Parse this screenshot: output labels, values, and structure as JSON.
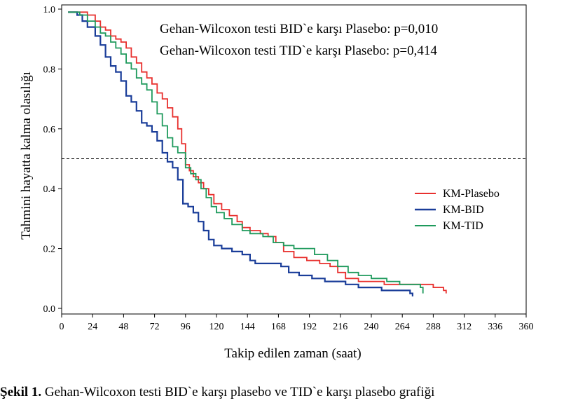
{
  "chart_data": {
    "type": "line",
    "title": "",
    "xlabel": "Takip edilen zaman (saat)",
    "ylabel": "Tahmini hayatta kalma olasılığı",
    "xlim": [
      0,
      360
    ],
    "ylim": [
      0,
      1.0
    ],
    "x_ticks": [
      0,
      24,
      48,
      72,
      96,
      120,
      144,
      168,
      192,
      216,
      240,
      264,
      288,
      312,
      336,
      360
    ],
    "x_tick_labels": [
      "0",
      "24",
      "48",
      "72",
      "96",
      "120",
      "144",
      "168",
      "192",
      "216",
      "240",
      "264",
      "288",
      "312",
      "336",
      "360"
    ],
    "y_ticks": [
      0.0,
      0.2,
      0.4,
      0.6,
      0.8,
      1.0
    ],
    "y_tick_labels": [
      "0.0",
      "0.2",
      "0.4",
      "0.6",
      "0.8",
      "1.0"
    ],
    "reference_line": {
      "y": 0.5,
      "style": "dashed"
    },
    "annotations": [
      "Gehan-Wilcoxon testi BID`e karşı Plasebo: p=0,010",
      "Gehan-Wilcoxon testi TID`e karşı Plasebo: p=0,414"
    ],
    "legend_position": "right",
    "series": [
      {
        "name": "KM-Plasebo",
        "color": "#e8302e",
        "step": true,
        "points": [
          [
            5,
            0.99
          ],
          [
            16,
            0.99
          ],
          [
            20,
            0.98
          ],
          [
            26,
            0.96
          ],
          [
            30,
            0.94
          ],
          [
            34,
            0.93
          ],
          [
            38,
            0.91
          ],
          [
            42,
            0.9
          ],
          [
            46,
            0.89
          ],
          [
            50,
            0.87
          ],
          [
            54,
            0.84
          ],
          [
            58,
            0.82
          ],
          [
            62,
            0.79
          ],
          [
            66,
            0.77
          ],
          [
            70,
            0.75
          ],
          [
            74,
            0.72
          ],
          [
            78,
            0.7
          ],
          [
            82,
            0.67
          ],
          [
            86,
            0.64
          ],
          [
            90,
            0.6
          ],
          [
            93,
            0.55
          ],
          [
            96,
            0.48
          ],
          [
            99,
            0.46
          ],
          [
            102,
            0.44
          ],
          [
            106,
            0.42
          ],
          [
            110,
            0.4
          ],
          [
            114,
            0.38
          ],
          [
            118,
            0.35
          ],
          [
            124,
            0.33
          ],
          [
            130,
            0.31
          ],
          [
            136,
            0.29
          ],
          [
            140,
            0.27
          ],
          [
            146,
            0.26
          ],
          [
            154,
            0.25
          ],
          [
            160,
            0.24
          ],
          [
            166,
            0.22
          ],
          [
            172,
            0.19
          ],
          [
            180,
            0.17
          ],
          [
            190,
            0.16
          ],
          [
            200,
            0.15
          ],
          [
            208,
            0.14
          ],
          [
            214,
            0.12
          ],
          [
            220,
            0.1
          ],
          [
            230,
            0.09
          ],
          [
            250,
            0.08
          ],
          [
            264,
            0.08
          ],
          [
            288,
            0.07
          ],
          [
            296,
            0.06
          ],
          [
            298,
            0.05
          ]
        ]
      },
      {
        "name": "KM-BID",
        "color": "#1a3d99",
        "step": true,
        "points": [
          [
            5,
            0.99
          ],
          [
            12,
            0.98
          ],
          [
            16,
            0.96
          ],
          [
            20,
            0.94
          ],
          [
            26,
            0.91
          ],
          [
            30,
            0.88
          ],
          [
            34,
            0.84
          ],
          [
            38,
            0.81
          ],
          [
            42,
            0.79
          ],
          [
            46,
            0.76
          ],
          [
            50,
            0.71
          ],
          [
            54,
            0.69
          ],
          [
            58,
            0.66
          ],
          [
            62,
            0.62
          ],
          [
            66,
            0.61
          ],
          [
            70,
            0.59
          ],
          [
            74,
            0.56
          ],
          [
            78,
            0.52
          ],
          [
            82,
            0.49
          ],
          [
            86,
            0.47
          ],
          [
            90,
            0.43
          ],
          [
            94,
            0.35
          ],
          [
            98,
            0.34
          ],
          [
            102,
            0.32
          ],
          [
            106,
            0.29
          ],
          [
            110,
            0.26
          ],
          [
            114,
            0.23
          ],
          [
            118,
            0.21
          ],
          [
            124,
            0.2
          ],
          [
            132,
            0.19
          ],
          [
            140,
            0.18
          ],
          [
            146,
            0.16
          ],
          [
            150,
            0.15
          ],
          [
            160,
            0.15
          ],
          [
            170,
            0.14
          ],
          [
            176,
            0.12
          ],
          [
            184,
            0.11
          ],
          [
            194,
            0.1
          ],
          [
            204,
            0.09
          ],
          [
            220,
            0.08
          ],
          [
            230,
            0.07
          ],
          [
            248,
            0.06
          ],
          [
            262,
            0.06
          ],
          [
            270,
            0.05
          ],
          [
            272,
            0.04
          ]
        ]
      },
      {
        "name": "KM-TID",
        "color": "#1e9a5c",
        "step": true,
        "points": [
          [
            5,
            0.99
          ],
          [
            14,
            0.98
          ],
          [
            20,
            0.96
          ],
          [
            26,
            0.94
          ],
          [
            30,
            0.92
          ],
          [
            34,
            0.91
          ],
          [
            38,
            0.89
          ],
          [
            42,
            0.87
          ],
          [
            46,
            0.85
          ],
          [
            50,
            0.82
          ],
          [
            54,
            0.8
          ],
          [
            58,
            0.77
          ],
          [
            62,
            0.75
          ],
          [
            66,
            0.73
          ],
          [
            70,
            0.69
          ],
          [
            74,
            0.65
          ],
          [
            78,
            0.61
          ],
          [
            82,
            0.57
          ],
          [
            86,
            0.54
          ],
          [
            90,
            0.52
          ],
          [
            96,
            0.47
          ],
          [
            100,
            0.45
          ],
          [
            104,
            0.43
          ],
          [
            108,
            0.4
          ],
          [
            112,
            0.37
          ],
          [
            116,
            0.34
          ],
          [
            120,
            0.32
          ],
          [
            126,
            0.3
          ],
          [
            132,
            0.28
          ],
          [
            140,
            0.26
          ],
          [
            146,
            0.25
          ],
          [
            156,
            0.24
          ],
          [
            164,
            0.22
          ],
          [
            172,
            0.21
          ],
          [
            180,
            0.2
          ],
          [
            196,
            0.18
          ],
          [
            206,
            0.16
          ],
          [
            214,
            0.14
          ],
          [
            222,
            0.12
          ],
          [
            230,
            0.11
          ],
          [
            240,
            0.1
          ],
          [
            252,
            0.09
          ],
          [
            262,
            0.08
          ],
          [
            278,
            0.07
          ],
          [
            280,
            0.05
          ]
        ]
      }
    ]
  },
  "caption": {
    "label": "Şekil 1.",
    "text": " Gehan-Wilcoxon testi BID`e karşı plasebo ve TID`e karşı plasebo grafiği"
  }
}
